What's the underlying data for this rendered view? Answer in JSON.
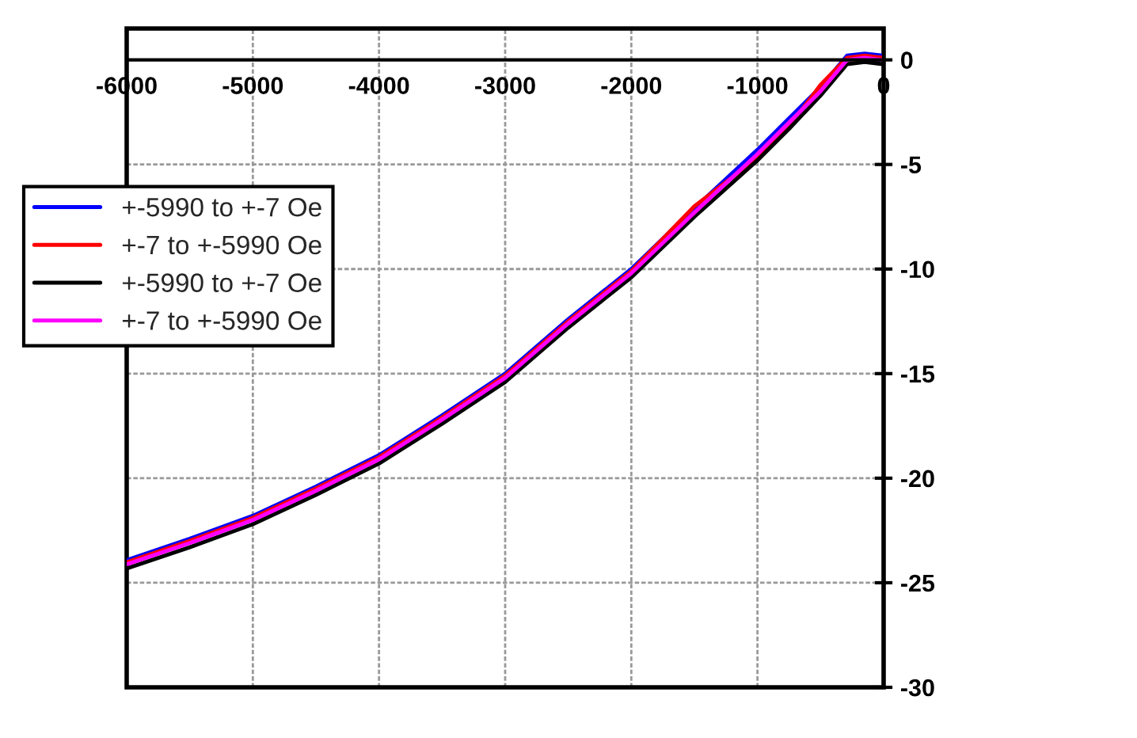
{
  "chart_data": {
    "type": "line",
    "x": [
      -5990,
      -5500,
      -5000,
      -4500,
      -4000,
      -3500,
      -3000,
      -2500,
      -2000,
      -1500,
      -1000,
      -750,
      -500,
      -290,
      -150,
      -7
    ],
    "series": [
      {
        "name": "+-5990 to +-7 Oe",
        "color": "#0000ff",
        "values": [
          -23.9,
          -22.9,
          -21.8,
          -20.4,
          -18.9,
          -17.0,
          -15.0,
          -12.4,
          -10.0,
          -7.1,
          -4.3,
          -2.8,
          -1.3,
          0.2,
          0.3,
          0.2
        ]
      },
      {
        "name": "+-7 to +-5990 Oe",
        "color": "#ff0000",
        "values": [
          -24.0,
          -23.0,
          -21.9,
          -20.5,
          -19.0,
          -17.1,
          -15.1,
          -12.5,
          -10.1,
          -7.0,
          -4.7,
          -3.2,
          -1.2,
          0.1,
          0.2,
          0.1
        ]
      },
      {
        "name": "+-5990 to +-7 Oe",
        "color": "#000000",
        "values": [
          -24.3,
          -23.3,
          -22.2,
          -20.8,
          -19.3,
          -17.4,
          -15.4,
          -12.8,
          -10.4,
          -7.5,
          -4.8,
          -3.3,
          -1.7,
          -0.2,
          -0.1,
          -0.2
        ]
      },
      {
        "name": "+-7 to +-5990 Oe",
        "color": "#ff00ff",
        "values": [
          -24.1,
          -23.1,
          -22.0,
          -20.6,
          -19.1,
          -17.2,
          -15.2,
          -12.6,
          -10.2,
          -7.3,
          -4.5,
          -3.0,
          -1.5,
          0,
          0.1,
          0
        ]
      }
    ],
    "xlim": [
      -6000,
      0
    ],
    "xticks": [
      -6000,
      -5000,
      -4000,
      -3000,
      -2000,
      -1000,
      0
    ],
    "ylim": [
      -30,
      1.5
    ],
    "yticks": [
      -30,
      -25,
      -20,
      -15,
      -10,
      -5,
      0
    ],
    "grid": true,
    "legend": "left",
    "line_style": "solid",
    "marker": "none"
  }
}
